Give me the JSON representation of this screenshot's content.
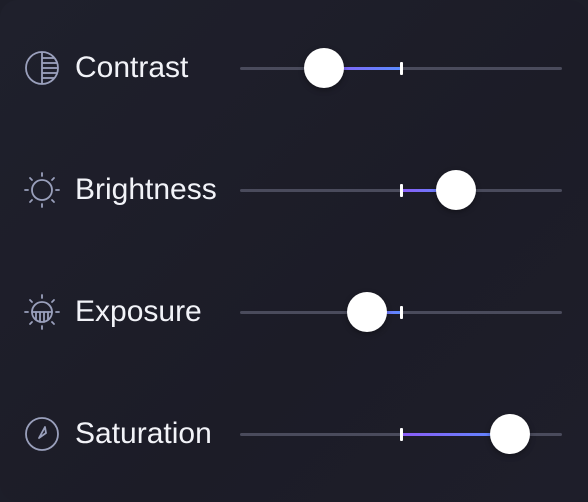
{
  "sliders": [
    {
      "label": "Contrast",
      "icon": "contrast-icon",
      "value": -0.48,
      "default": 0.5,
      "min_frac": 0,
      "max_frac": 1
    },
    {
      "label": "Brightness",
      "icon": "brightness-icon",
      "value": 0.34
    },
    {
      "label": "Exposure",
      "icon": "exposure-icon",
      "value": -0.21
    },
    {
      "label": "Saturation",
      "icon": "saturation-icon",
      "value": 0.68
    }
  ],
  "colors": {
    "background": "#1d1e29",
    "track": "#4a4b5c",
    "fill_start": "#8b5cf6",
    "fill_end": "#5b8cff",
    "thumb": "#ffffff",
    "label": "#f2f3f8",
    "icon": "#9aa0bc"
  }
}
